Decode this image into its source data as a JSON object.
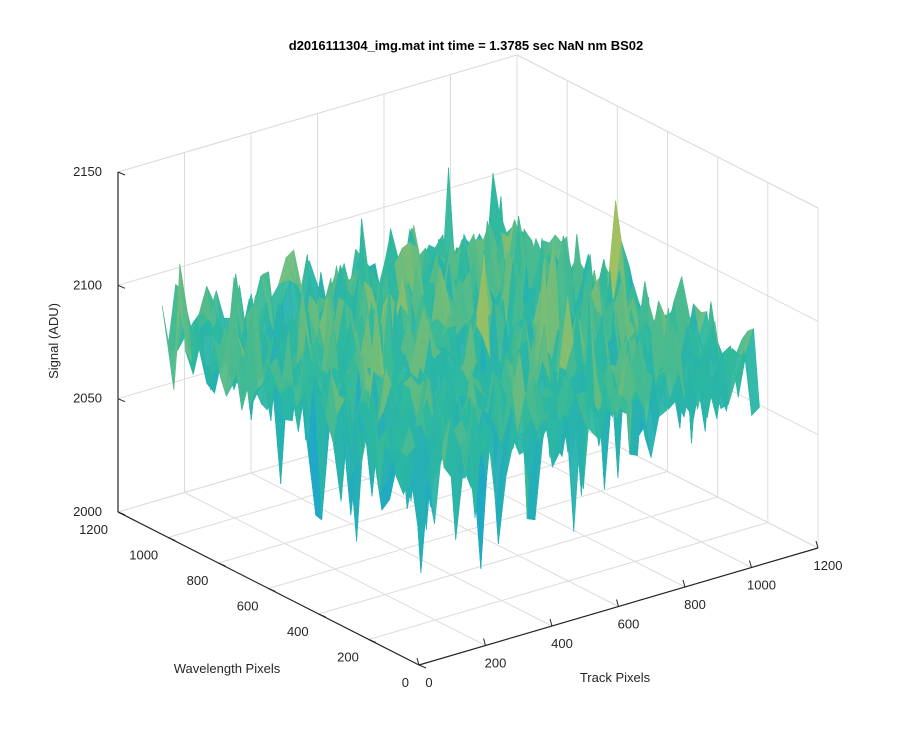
{
  "chart_data": {
    "type": "surface",
    "title": "d2016111304_img.mat int time = 1.3785 sec  NaN nm BS02",
    "xlabel": "Track Pixels",
    "ylabel": "Wavelength Pixels",
    "zlabel": "Signal (ADU)",
    "xlim": [
      0,
      1200
    ],
    "ylim": [
      0,
      1200
    ],
    "zlim": [
      2000,
      2150
    ],
    "x_ticks": [
      "0",
      "200",
      "400",
      "600",
      "800",
      "1000",
      "1200"
    ],
    "y_ticks": [
      "0",
      "200",
      "400",
      "600",
      "800",
      "1000",
      "1200"
    ],
    "z_ticks": [
      "2000",
      "2050",
      "2100",
      "2150"
    ],
    "grid": true,
    "colormap": "parula",
    "surface_extent": {
      "x": [
        0,
        1024
      ],
      "y": [
        0,
        1024
      ]
    },
    "approx_signal_mean": 2088,
    "approx_signal_range": [
      2020,
      2145
    ],
    "colors": {
      "low": "#1aa3d6",
      "mid": "#2db89f",
      "high": "#e8c43a",
      "axis": "#262626",
      "grid": "#dcdcdc"
    }
  }
}
